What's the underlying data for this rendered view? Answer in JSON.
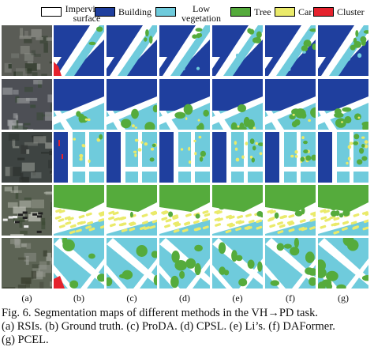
{
  "legend": {
    "items": [
      {
        "label_line1": "Impervious",
        "label_line2": "surface",
        "color": "#ffffff"
      },
      {
        "label_line1": "Building",
        "label_line2": "",
        "color": "#1f3f9e"
      },
      {
        "label_line1": "Low",
        "label_line2": "vegetation",
        "color": "#6fcbdc"
      },
      {
        "label_line1": "Tree",
        "label_line2": "",
        "color": "#55ab3c"
      },
      {
        "label_line1": "Car",
        "label_line2": "",
        "color": "#eaea6a"
      },
      {
        "label_line1": "Cluster",
        "label_line2": "",
        "color": "#e5222d"
      }
    ]
  },
  "columns": [
    "(a)",
    "(b)",
    "(c)",
    "(d)",
    "(e)",
    "(f)",
    "(g)"
  ],
  "caption": {
    "line1": "Fig. 6.    Segmentation maps of different methods in the VH→PD task.",
    "line2": "(a) RSIs. (b) Ground truth. (c) ProDA. (d) CPSL. (e) Li’s. (f) DAFormer.",
    "line3": "(g) PCEL."
  },
  "colors": {
    "impervious": "#ffffff",
    "building": "#1f3f9e",
    "low_vegetation": "#6fcbdc",
    "tree": "#55ab3c",
    "car": "#eaea6a",
    "cluster": "#e5222d"
  }
}
